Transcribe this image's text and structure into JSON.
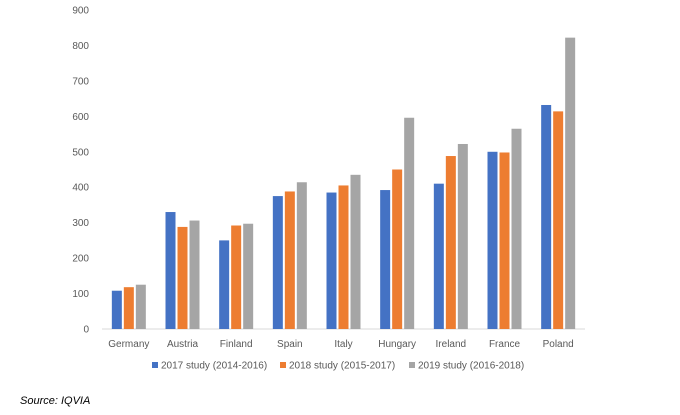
{
  "chart_data": {
    "type": "bar",
    "title": "",
    "xlabel": "",
    "ylabel": "",
    "ylim": [
      0,
      900
    ],
    "yticks": [
      0,
      100,
      200,
      300,
      400,
      500,
      600,
      700,
      800,
      900
    ],
    "grid": false,
    "legend_position": "bottom",
    "categories": [
      "Germany",
      "Austria",
      "Finland",
      "Spain",
      "Italy",
      "Hungary",
      "Ireland",
      "France",
      "Poland"
    ],
    "series": [
      {
        "name": "2017 study (2014-2016)",
        "color": "#4472C4",
        "values": [
          108,
          330,
          250,
          375,
          385,
          392,
          410,
          500,
          632
        ]
      },
      {
        "name": "2018 study (2015-2017)",
        "color": "#ED7D31",
        "values": [
          118,
          288,
          292,
          388,
          405,
          450,
          488,
          498,
          614
        ]
      },
      {
        "name": "2019 study (2016-2018)",
        "color": "#A5A5A5",
        "values": [
          125,
          306,
          297,
          414,
          435,
          596,
          522,
          565,
          822
        ]
      }
    ]
  },
  "source": "Source: IQVIA"
}
